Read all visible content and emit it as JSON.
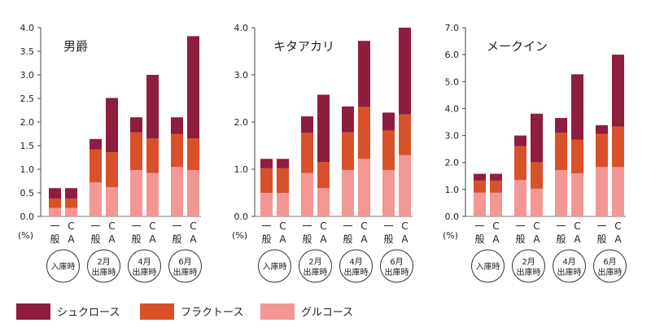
{
  "chart_data": {
    "type": "bar",
    "stacked": true,
    "unit_label": "(%)",
    "categories": [
      "一般",
      "CA",
      "一般",
      "CA",
      "一般",
      "CA",
      "一般",
      "CA"
    ],
    "category_labels": [
      [
        "一",
        "般"
      ],
      [
        "C",
        "A"
      ],
      [
        "一",
        "般"
      ],
      [
        "C",
        "A"
      ],
      [
        "一",
        "般"
      ],
      [
        "C",
        "A"
      ],
      [
        "一",
        "般"
      ],
      [
        "C",
        "A"
      ]
    ],
    "stages": [
      [
        "入庫時"
      ],
      [
        "2月",
        "出庫時"
      ],
      [
        "4月",
        "出庫時"
      ],
      [
        "6月",
        "出庫時"
      ]
    ],
    "legend": {
      "placement": "bottom-left",
      "entries": [
        {
          "name": "シュクロース",
          "color": "#8e1d3e"
        },
        {
          "name": "フラクトース",
          "color": "#d9512a"
        },
        {
          "name": "グルコース",
          "color": "#f29793"
        }
      ]
    },
    "panels": [
      {
        "title": "男爵",
        "ylim": [
          0,
          4.0
        ],
        "yticks": [
          "0.0",
          "0.5",
          "1.0",
          "1.5",
          "2.0",
          "2.5",
          "3.0",
          "3.5",
          "4.0"
        ],
        "series": [
          {
            "name": "グルコース",
            "values": [
              0.18,
              0.18,
              0.72,
              0.62,
              0.98,
              0.92,
              1.05,
              0.98
            ]
          },
          {
            "name": "フラクトース",
            "values": [
              0.2,
              0.2,
              0.7,
              0.74,
              0.8,
              0.73,
              0.7,
              0.67
            ]
          },
          {
            "name": "シュクロース",
            "values": [
              0.22,
              0.22,
              0.22,
              1.15,
              0.32,
              1.35,
              0.35,
              2.17
            ]
          }
        ]
      },
      {
        "title": "キタアカリ",
        "ylim": [
          0,
          4.0
        ],
        "yticks": [
          "0.0",
          "1.0",
          "2.0",
          "3.0",
          "4.0"
        ],
        "series": [
          {
            "name": "グルコース",
            "values": [
              0.5,
              0.5,
              0.92,
              0.6,
              0.98,
              1.22,
              0.98,
              1.3
            ]
          },
          {
            "name": "フラクトース",
            "values": [
              0.52,
              0.52,
              0.85,
              0.55,
              0.8,
              1.1,
              0.84,
              0.86
            ]
          },
          {
            "name": "シュクロース",
            "values": [
              0.2,
              0.2,
              0.35,
              1.43,
              0.55,
              1.4,
              0.38,
              1.84
            ]
          }
        ]
      },
      {
        "title": "メークイン",
        "ylim": [
          0,
          7.0
        ],
        "yticks": [
          "0.0",
          "1.0",
          "2.0",
          "3.0",
          "4.0",
          "5.0",
          "6.0",
          "7.0"
        ],
        "series": [
          {
            "name": "グルコース",
            "values": [
              0.88,
              0.88,
              1.35,
              1.03,
              1.72,
              1.6,
              1.83,
              1.83
            ]
          },
          {
            "name": "フラクトース",
            "values": [
              0.45,
              0.45,
              1.25,
              0.98,
              1.38,
              1.25,
              1.23,
              1.5
            ]
          },
          {
            "name": "シュクロース",
            "values": [
              0.25,
              0.25,
              0.4,
              1.8,
              0.55,
              2.42,
              0.32,
              2.67
            ]
          }
        ]
      }
    ]
  }
}
